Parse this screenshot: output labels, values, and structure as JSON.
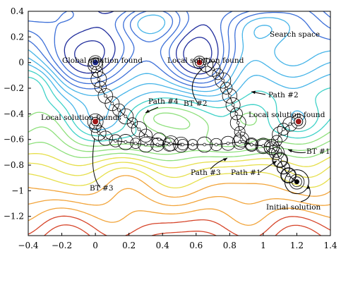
{
  "chart_data": {
    "type": "contour",
    "title": "",
    "xlabel": "",
    "ylabel": "",
    "xlim": [
      -0.4,
      1.4
    ],
    "ylim": [
      -1.35,
      0.4
    ],
    "x_ticks": [
      "-0.4",
      "-0.2",
      "0",
      "0.2",
      "0.4",
      "0.6",
      "0.8",
      "1",
      "1.2",
      "1.4"
    ],
    "y_ticks": [
      "0.4",
      "0.2",
      "0",
      "-0.2",
      "-0.4",
      "-0.6",
      "-0.8",
      "-1",
      "-1.2"
    ],
    "x_tick_values": [
      -0.4,
      -0.2,
      0,
      0.2,
      0.4,
      0.6,
      0.8,
      1.0,
      1.2,
      1.4
    ],
    "y_tick_values": [
      0.4,
      0.2,
      0,
      -0.2,
      -0.4,
      -0.6,
      -0.8,
      -1.0,
      -1.2
    ],
    "grid": false,
    "colormap": [
      "#1f2c9c",
      "#3c6fd8",
      "#46b4e8",
      "#3fd2c8",
      "#8ee07c",
      "#e6df4a",
      "#f2a43a",
      "#d6452a"
    ],
    "solutions": [
      {
        "x": 0.0,
        "y": 0.0,
        "kind": "global"
      },
      {
        "x": 0.62,
        "y": 0.0,
        "kind": "local"
      },
      {
        "x": 0.0,
        "y": -0.46,
        "kind": "local"
      },
      {
        "x": 1.21,
        "y": -0.46,
        "kind": "local"
      },
      {
        "x": 1.2,
        "y": -0.93,
        "kind": "initial"
      }
    ],
    "paths": [
      {
        "name": "Path #1",
        "points": [
          [
            1.2,
            -0.93
          ],
          [
            1.15,
            -0.88
          ],
          [
            1.12,
            -0.82
          ],
          [
            1.1,
            -0.76
          ],
          [
            1.08,
            -0.7
          ],
          [
            1.05,
            -0.66
          ],
          [
            1.0,
            -0.65
          ],
          [
            0.93,
            -0.64
          ],
          [
            0.86,
            -0.62
          ],
          [
            0.79,
            -0.63
          ],
          [
            0.72,
            -0.64
          ],
          [
            0.65,
            -0.64
          ],
          [
            0.58,
            -0.64
          ],
          [
            0.51,
            -0.64
          ],
          [
            0.44,
            -0.64
          ],
          [
            0.37,
            -0.64
          ],
          [
            0.3,
            -0.64
          ],
          [
            0.24,
            -0.63
          ],
          [
            0.18,
            -0.62
          ],
          [
            0.12,
            -0.61
          ],
          [
            0.06,
            -0.59
          ],
          [
            0.02,
            -0.55
          ],
          [
            0.0,
            -0.5
          ],
          [
            0.0,
            -0.46
          ]
        ]
      },
      {
        "name": "Path #2",
        "points": [
          [
            1.2,
            -0.93
          ],
          [
            1.15,
            -0.88
          ],
          [
            1.12,
            -0.82
          ],
          [
            1.1,
            -0.76
          ],
          [
            1.08,
            -0.7
          ],
          [
            1.05,
            -0.66
          ],
          [
            1.0,
            -0.65
          ],
          [
            0.93,
            -0.64
          ],
          [
            0.87,
            -0.6
          ],
          [
            0.86,
            -0.54
          ],
          [
            0.85,
            -0.47
          ],
          [
            0.84,
            -0.4
          ],
          [
            0.82,
            -0.33
          ],
          [
            0.8,
            -0.26
          ],
          [
            0.78,
            -0.2
          ],
          [
            0.76,
            -0.14
          ],
          [
            0.73,
            -0.09
          ],
          [
            0.7,
            -0.05
          ],
          [
            0.66,
            -0.02
          ],
          [
            0.62,
            0.0
          ]
        ]
      },
      {
        "name": "Path #3",
        "points": [
          [
            1.05,
            -0.66
          ],
          [
            1.08,
            -0.61
          ],
          [
            1.1,
            -0.56
          ],
          [
            1.12,
            -0.52
          ],
          [
            1.16,
            -0.48
          ],
          [
            1.21,
            -0.46
          ]
        ]
      },
      {
        "name": "Path #4",
        "points": [
          [
            0.52,
            -0.64
          ],
          [
            0.45,
            -0.63
          ],
          [
            0.38,
            -0.6
          ],
          [
            0.3,
            -0.57
          ],
          [
            0.26,
            -0.52
          ],
          [
            0.22,
            -0.47
          ],
          [
            0.18,
            -0.42
          ],
          [
            0.14,
            -0.37
          ],
          [
            0.1,
            -0.32
          ],
          [
            0.06,
            -0.26
          ],
          [
            0.03,
            -0.19
          ],
          [
            0.02,
            -0.13
          ],
          [
            0.01,
            -0.07
          ],
          [
            0.0,
            -0.02
          ],
          [
            0.0,
            0.0
          ]
        ]
      }
    ],
    "annotations": {
      "search_space": "Search space",
      "global_found": "Global solution found",
      "local_found_top": "Local solution found",
      "local_found_left": "Local solution founds",
      "local_found_right": "Local solution found",
      "path1": "Path #1",
      "path2": "Path #2",
      "path3": "Path #3",
      "path4": "Path #4",
      "bt1": "BT #1",
      "bt2": "BT #2",
      "bt3": "BT #3",
      "initial": "Initial solution"
    }
  }
}
